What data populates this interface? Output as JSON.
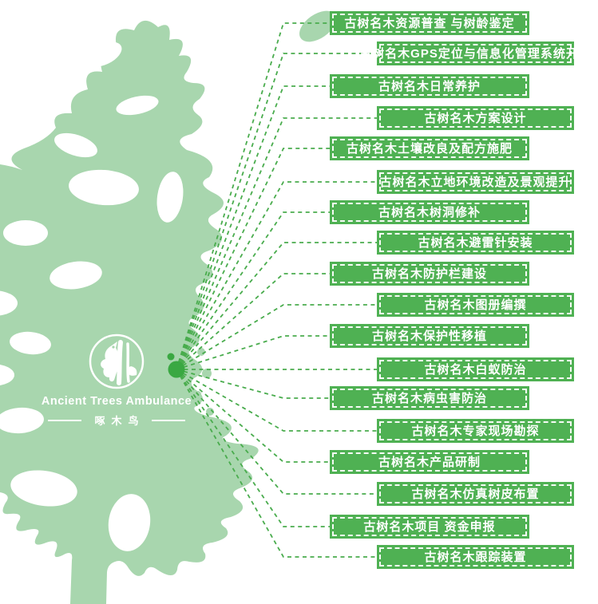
{
  "logo": {
    "title_en": "Ancient Trees Ambulance",
    "title_zh": "啄木鸟",
    "emblem": "woodpecker-tree-icon"
  },
  "services": [
    "古树名木资源普查 与树龄鉴定",
    "古树名木GPS定位与信息化管理系统开发",
    "古树名木日常养护",
    "古树名木方案设计",
    "古树名木土壤改良及配方施肥",
    "古树名木立地环境改造及景观提升",
    "古树名木树洞修补",
    "古树名木避雷针安装",
    "古树名木防护栏建设",
    "古树名木图册编撰",
    "古树名木保护性移植",
    "古树名木白蚁防治",
    "古树名木病虫害防治",
    "古树名木专家现场勘探",
    "古树名木产品研制",
    "古树名木仿真树皮布置",
    "古树名木项目 资金申报",
    "古树名木跟踪装置"
  ],
  "colors": {
    "service_box_green": "#4fb153",
    "connector_green": "#49ac4d",
    "hub_dot_green": "#3aa842",
    "tree_silhouette_green": "#a8d6ae",
    "text_white": "#ffffff",
    "background": "#ffffff"
  }
}
